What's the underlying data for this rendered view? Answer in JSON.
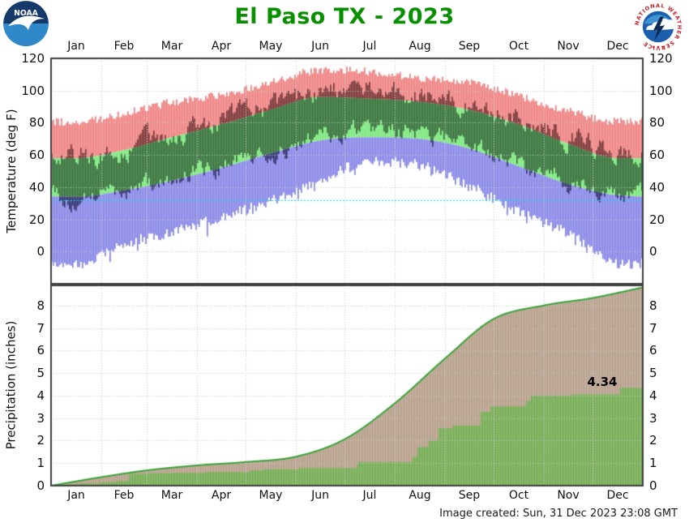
{
  "header": {
    "title": "El Paso TX - 2023",
    "title_color": "#089000",
    "noaa_logo_text": "NOAA",
    "nws_logo_text": "NATIONAL WEATHER SERVICE",
    "nws_logo_stars": "★ ★ ★"
  },
  "footer": {
    "created_text": "Image created: Sun, 31 Dec 2023 23:08 GMT"
  },
  "months": [
    "Jan",
    "Feb",
    "Mar",
    "Apr",
    "May",
    "Jun",
    "Jul",
    "Aug",
    "Sep",
    "Oct",
    "Nov",
    "Dec"
  ],
  "chart_data": [
    {
      "type": "area",
      "panel": "temperature",
      "title": "El Paso TX - 2023",
      "ylabel": "Temperature (deg F)",
      "ylim": [
        -20,
        120
      ],
      "yticks": [
        0,
        20,
        40,
        60,
        80,
        100,
        120
      ],
      "grid": true,
      "freezing_line": 32,
      "categories": [
        "Jan",
        "Feb",
        "Mar",
        "Apr",
        "May",
        "Jun",
        "Jul",
        "Aug",
        "Sep",
        "Oct",
        "Nov",
        "Dec"
      ],
      "series": [
        {
          "name": "record_high",
          "monthly": [
            80,
            85,
            92,
            97,
            104,
            112,
            111,
            107,
            104,
            96,
            87,
            80
          ]
        },
        {
          "name": "normal_high",
          "monthly": [
            58,
            63,
            71,
            79,
            88,
            96,
            95,
            93,
            88,
            79,
            67,
            58
          ]
        },
        {
          "name": "normal_low",
          "monthly": [
            34,
            38,
            44,
            52,
            61,
            69,
            71,
            70,
            64,
            53,
            42,
            35
          ]
        },
        {
          "name": "record_low",
          "monthly": [
            -6,
            6,
            13,
            23,
            33,
            46,
            57,
            55,
            42,
            26,
            13,
            -6
          ]
        },
        {
          "name": "actual_high_anomaly",
          "monthly": [
            1,
            0,
            2,
            2,
            1,
            4,
            6,
            4,
            3,
            3,
            4,
            4
          ]
        },
        {
          "name": "actual_low_anomaly",
          "monthly": [
            0,
            -1,
            1,
            1,
            0,
            2,
            4,
            3,
            2,
            2,
            2,
            2
          ]
        }
      ],
      "colors": {
        "record_high_band": "#f08080",
        "normal_band": "#78e878",
        "record_low_band": "#8585e8",
        "actual_above_normal": "#7b2e2e",
        "actual_within_normal": "#2d6e32",
        "actual_below_normal": "#2b2b6e",
        "freezing_line": "#00e0ee"
      }
    },
    {
      "type": "area",
      "panel": "precipitation",
      "ylabel": "Precipitation (inches)",
      "ylim": [
        0,
        8.9
      ],
      "yticks": [
        0,
        1,
        2,
        3,
        4,
        5,
        6,
        7,
        8
      ],
      "grid": true,
      "categories": [
        "Jan",
        "Feb",
        "Mar",
        "Apr",
        "May",
        "Jun",
        "Jul",
        "Aug",
        "Sep",
        "Oct",
        "Nov",
        "Dec"
      ],
      "normal_cumulative_monthend": [
        0.38,
        0.68,
        0.9,
        1.05,
        1.29,
        2.06,
        3.66,
        5.65,
        7.41,
        8.01,
        8.34,
        8.81
      ],
      "actual_cumulative_steps": [
        [
          4,
          0.02
        ],
        [
          10,
          0.06
        ],
        [
          18,
          0.1
        ],
        [
          30,
          0.15
        ],
        [
          40,
          0.2
        ],
        [
          48,
          0.52
        ],
        [
          60,
          0.55
        ],
        [
          75,
          0.57
        ],
        [
          95,
          0.6
        ],
        [
          123,
          0.68
        ],
        [
          131,
          0.72
        ],
        [
          153,
          0.78
        ],
        [
          189,
          1.05
        ],
        [
          223,
          1.29
        ],
        [
          226,
          1.71
        ],
        [
          233,
          2.01
        ],
        [
          239,
          2.55
        ],
        [
          248,
          2.67
        ],
        [
          265,
          3.28
        ],
        [
          271,
          3.52
        ],
        [
          293,
          3.76
        ],
        [
          296,
          4.0
        ],
        [
          321,
          4.05
        ],
        [
          351,
          4.34
        ]
      ],
      "annotation": {
        "label": "4.34",
        "day": 351,
        "value": 4.34
      },
      "colors": {
        "actual_fill": "#6ea84a",
        "normal_fill": "#b49c85",
        "normal_line": "#3aa33a"
      }
    }
  ]
}
